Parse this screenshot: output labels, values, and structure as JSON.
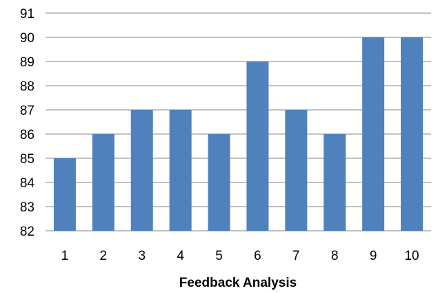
{
  "chart_data": {
    "type": "bar",
    "categories": [
      "1",
      "2",
      "3",
      "4",
      "5",
      "6",
      "7",
      "8",
      "9",
      "10"
    ],
    "values": [
      85,
      86,
      87,
      87,
      86,
      89,
      87,
      86,
      90,
      90
    ],
    "title": "",
    "xlabel": "Feedback Analysis",
    "ylabel": "",
    "ylim": [
      82,
      91
    ],
    "yticks": [
      82,
      83,
      84,
      85,
      86,
      87,
      88,
      89,
      90,
      91
    ],
    "grid": true,
    "legend": "none",
    "bar_color": "#4f81bd",
    "grid_color": "#868686"
  }
}
